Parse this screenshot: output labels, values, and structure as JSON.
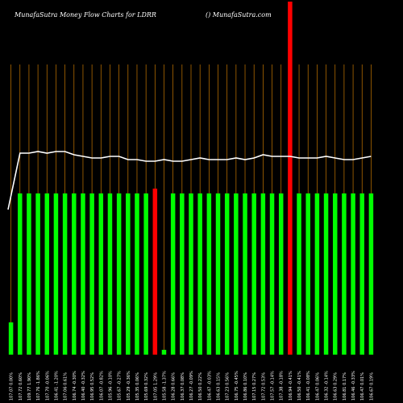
{
  "chart_data": {
    "type": "bar",
    "title": "MunafaSutra  Money Flow  Charts for LDRR",
    "subtitle": "() MunafaSutra.com",
    "categories": [
      "107.07 0.00%",
      "107.72 0.60%",
      "109.77 1.90%",
      "107.76 -1.86%",
      "107.70 -0.06%",
      "106.41 -1.20%",
      "107.06 0.61%",
      "106.74 -0.30%",
      "106.40 -0.32%",
      "106.95 0.52%",
      "106.07 -0.82%",
      "105.96 -0.10%",
      "105.67 -0.27%",
      "105.29 -0.36%",
      "105.35 0.06%",
      "105.69 0.32%",
      "107.05 1.29%",
      "105.58 -1.37%",
      "106.28 0.66%",
      "106.37 0.08%",
      "106.27 -0.09%",
      "106.50 0.22%",
      "106.47 -0.03%",
      "106.63 0.15%",
      "107.23 0.56%",
      "106.75 -0.45%",
      "106.86 0.10%",
      "107.15 0.27%",
      "107.72 0.53%",
      "107.57 -0.14%",
      "107.38 -0.18%",
      "106.94 -0.41%",
      "106.50 -0.41%",
      "106.41 -0.08%",
      "106.47 0.06%",
      "106.32 -0.14%",
      "106.63 0.29%",
      "106.81 0.17%",
      "106.46 -0.33%",
      "106.47 0.01%",
      "106.67 0.19%"
    ],
    "bars": [
      {
        "value": 20,
        "color": "#00ff00"
      },
      {
        "value": 100,
        "color": "#00ff00"
      },
      {
        "value": 100,
        "color": "#00ff00"
      },
      {
        "value": 100,
        "color": "#00ff00"
      },
      {
        "value": 100,
        "color": "#00ff00"
      },
      {
        "value": 100,
        "color": "#00ff00"
      },
      {
        "value": 100,
        "color": "#00ff00"
      },
      {
        "value": 100,
        "color": "#00ff00"
      },
      {
        "value": 100,
        "color": "#00ff00"
      },
      {
        "value": 100,
        "color": "#00ff00"
      },
      {
        "value": 100,
        "color": "#00ff00"
      },
      {
        "value": 100,
        "color": "#00ff00"
      },
      {
        "value": 100,
        "color": "#00ff00"
      },
      {
        "value": 100,
        "color": "#00ff00"
      },
      {
        "value": 100,
        "color": "#00ff00"
      },
      {
        "value": 100,
        "color": "#00ff00"
      },
      {
        "value": 103,
        "color": "#ff0000"
      },
      {
        "value": 3,
        "color": "#00ff00"
      },
      {
        "value": 100,
        "color": "#00ff00"
      },
      {
        "value": 100,
        "color": "#00ff00"
      },
      {
        "value": 100,
        "color": "#00ff00"
      },
      {
        "value": 100,
        "color": "#00ff00"
      },
      {
        "value": 100,
        "color": "#00ff00"
      },
      {
        "value": 100,
        "color": "#00ff00"
      },
      {
        "value": 100,
        "color": "#00ff00"
      },
      {
        "value": 100,
        "color": "#00ff00"
      },
      {
        "value": 100,
        "color": "#00ff00"
      },
      {
        "value": 100,
        "color": "#00ff00"
      },
      {
        "value": 100,
        "color": "#00ff00"
      },
      {
        "value": 100,
        "color": "#00ff00"
      },
      {
        "value": 100,
        "color": "#00ff00"
      },
      {
        "value": 219,
        "color": "#ff0000"
      },
      {
        "value": 100,
        "color": "#00ff00"
      },
      {
        "value": 100,
        "color": "#00ff00"
      },
      {
        "value": 100,
        "color": "#00ff00"
      },
      {
        "value": 100,
        "color": "#00ff00"
      },
      {
        "value": 100,
        "color": "#00ff00"
      },
      {
        "value": 100,
        "color": "#00ff00"
      },
      {
        "value": 100,
        "color": "#00ff00"
      },
      {
        "value": 100,
        "color": "#00ff00"
      },
      {
        "value": 100,
        "color": "#00ff00"
      }
    ],
    "price_line": [
      90,
      125,
      125,
      126,
      125,
      126,
      126,
      124,
      123,
      122,
      122,
      123,
      123,
      121,
      121,
      120,
      120,
      121,
      120,
      120,
      121,
      122,
      121,
      121,
      121,
      122,
      121,
      122,
      124,
      123,
      123,
      123,
      122,
      122,
      122,
      123,
      122,
      121,
      121,
      122,
      123
    ],
    "ylim": [
      0,
      220
    ],
    "grid": true,
    "colors": {
      "background": "#000000",
      "grid": "#c87800",
      "up": "#00ff00",
      "down": "#ff0000",
      "line": "#ffffff",
      "text": "#ffffff"
    }
  }
}
